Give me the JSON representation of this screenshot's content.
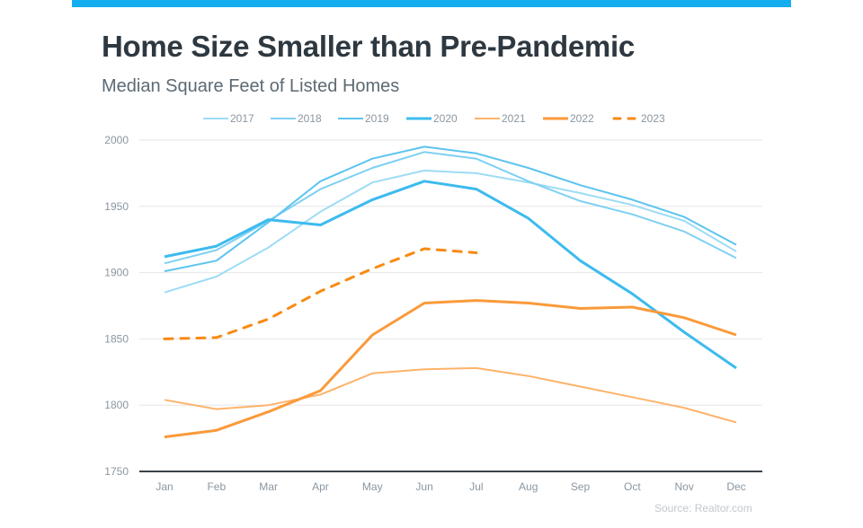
{
  "header": {
    "title": "Home Size Smaller than Pre-Pandemic",
    "subtitle": "Median Square Feet of Listed Homes",
    "accent_bar_color": "#12aeef"
  },
  "footer": {
    "source": "Source: Realtor.com"
  },
  "chart_data": {
    "type": "line",
    "title": "Home Size Smaller than Pre-Pandemic",
    "subtitle": "Median Square Feet of Listed Homes",
    "xlabel": "",
    "ylabel": "",
    "categories": [
      "Jan",
      "Feb",
      "Mar",
      "Apr",
      "May",
      "Jun",
      "Jul",
      "Aug",
      "Sep",
      "Oct",
      "Nov",
      "Dec"
    ],
    "ylim": [
      1750,
      2000
    ],
    "yticks": [
      1750,
      1800,
      1850,
      1900,
      1950,
      2000
    ],
    "grid": true,
    "legend_position": "top-center",
    "series": [
      {
        "name": "2017",
        "color": "#9ddcf5",
        "style": "solid",
        "weight": "thin",
        "values": [
          1885,
          1897,
          1919,
          1946,
          1968,
          1977,
          1975,
          1968,
          1960,
          1951,
          1939,
          1916
        ]
      },
      {
        "name": "2018",
        "color": "#7fd0f2",
        "style": "solid",
        "weight": "thin",
        "values": [
          1907,
          1917,
          1939,
          1963,
          1979,
          1991,
          1986,
          1969,
          1954,
          1944,
          1931,
          1911
        ]
      },
      {
        "name": "2019",
        "color": "#5cc4ef",
        "style": "solid",
        "weight": "thin",
        "values": [
          1901,
          1909,
          1938,
          1969,
          1986,
          1995,
          1990,
          1979,
          1966,
          1955,
          1942,
          1921
        ]
      },
      {
        "name": "2020",
        "color": "#3dbbee",
        "style": "solid",
        "weight": "thick",
        "values": [
          1912,
          1920,
          1940,
          1936,
          1955,
          1969,
          1963,
          1941,
          1909,
          1884,
          1855,
          1828
        ]
      },
      {
        "name": "2021",
        "color": "#fdb36b",
        "style": "solid",
        "weight": "thin",
        "values": [
          1804,
          1797,
          1800,
          1808,
          1824,
          1827,
          1828,
          1822,
          1814,
          1806,
          1798,
          1787
        ]
      },
      {
        "name": "2022",
        "color": "#fa9a3a",
        "style": "solid",
        "weight": "thick",
        "values": [
          1776,
          1781,
          1795,
          1811,
          1853,
          1877,
          1879,
          1877,
          1873,
          1874,
          1866,
          1853
        ]
      },
      {
        "name": "2023",
        "color": "#f88a12",
        "style": "dashed",
        "weight": "thick",
        "values": [
          1850,
          1851,
          1865,
          1886,
          1903,
          1918,
          1915,
          null,
          null,
          null,
          null,
          null
        ]
      }
    ]
  }
}
